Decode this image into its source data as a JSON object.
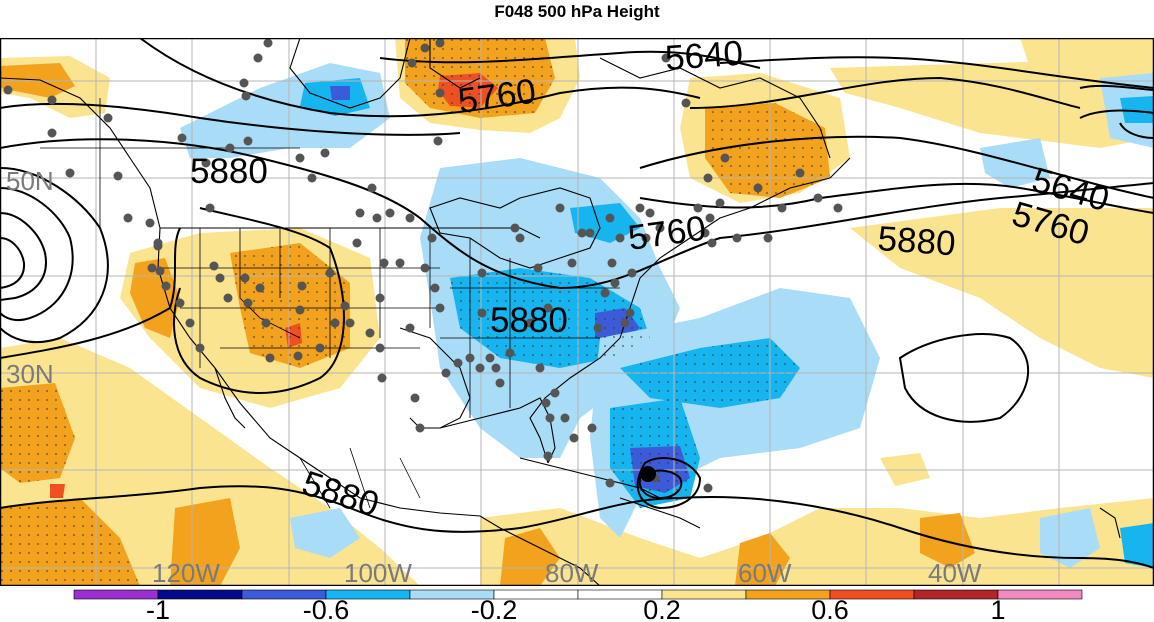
{
  "title": "F048 500 hPa Height",
  "latitude_labels": [
    "50N",
    "30N"
  ],
  "longitude_labels": [
    "120W",
    "100W",
    "80W",
    "60W",
    "40W"
  ],
  "contour_labels": [
    "5640",
    "5760",
    "5880",
    "5880",
    "5640",
    "5760",
    "5760",
    "5880",
    "5880",
    "5880"
  ],
  "colorbar": {
    "colors": [
      "#9b2fd0",
      "#050a8a",
      "#3c5bd8",
      "#16b5f0",
      "#a9dcf7",
      "#ffffff",
      "#ffffff",
      "#fbe48f",
      "#f2a21c",
      "#ee5022",
      "#b2262a",
      "#f08ac0"
    ],
    "labels": [
      "-1",
      "-0.6",
      "-0.2",
      "0.2",
      "0.6",
      "1"
    ]
  },
  "colors": {
    "positive_light": "#fbe48f",
    "positive_mid": "#f2a21c",
    "positive_strong": "#ee5022",
    "negative_light": "#a9dcf7",
    "negative_mid": "#16b5f0",
    "negative_strong": "#3c5bd8",
    "station_marker": "#555555"
  }
}
